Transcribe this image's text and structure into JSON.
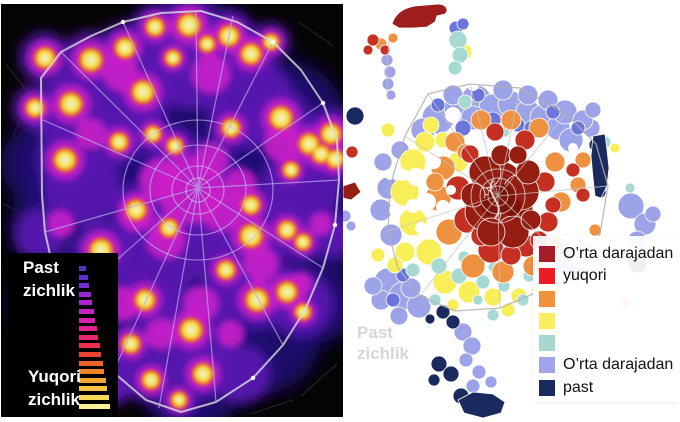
{
  "left_map": {
    "legend": {
      "low_line1": "Past",
      "low_line2": "zichlik",
      "high_line1": "Yuqori",
      "high_line2": "zichlik",
      "ramp_colors": [
        "#463CB8",
        "#5F30C8",
        "#7B2AD2",
        "#9726D6",
        "#B023D2",
        "#C521C6",
        "#D720AE",
        "#E32291",
        "#E92670",
        "#EB2F4C",
        "#EC4430",
        "#EF6428",
        "#F18527",
        "#F4A530",
        "#F6C23F",
        "#F8D958",
        "#FAEE96"
      ]
    }
  },
  "right_map": {
    "watermark_line1": "Past",
    "watermark_line2": "zichlik",
    "legend": {
      "entries": [
        {
          "color": "#A81B28",
          "label": "O’rta darajadan"
        },
        {
          "color": "#EC1B24",
          "label": "yuqori"
        },
        {
          "color": "#F0913C",
          "label": ""
        },
        {
          "color": "#F8EE5E",
          "label": ""
        },
        {
          "color": "#A7D8D0",
          "label": ""
        },
        {
          "color": "#9FA5E8",
          "label": "O’rta darajadan"
        },
        {
          "color": "#1B2A5E",
          "label": "past"
        }
      ]
    }
  }
}
